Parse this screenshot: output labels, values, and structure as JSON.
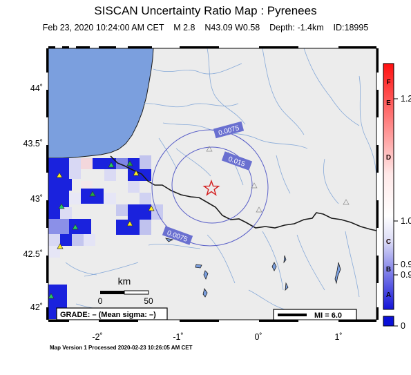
{
  "title": "SISCAN Uncertainty Ratio Map : Pyrenees",
  "subtitle": "Feb 23, 2020 10:24:00 AM CET    M 2.8    N43.09 W0.58    Depth: -1.4km    ID:18995",
  "footer": "Map Version 1 Processed 2020-02-23 10:26:05 AM CET",
  "axes": {
    "lon_labels": [
      "-2˚",
      "-1˚",
      "0˚",
      "1˚"
    ],
    "lat_labels": [
      "44˚",
      "43.5˚",
      "43˚",
      "42.5˚",
      "42˚"
    ]
  },
  "contours": {
    "outer": "0.0075",
    "inner": "0.015",
    "lower": "0.0075"
  },
  "scale": {
    "unit": "km",
    "start": "0",
    "end": "50"
  },
  "grade_box": "GRADE: – (Mean sigma: –)",
  "mi_legend": "MI = 6.0",
  "colorbar": {
    "letters": [
      "F",
      "E",
      "D",
      "C",
      "B",
      "A"
    ],
    "values": [
      "1.2",
      "1.0",
      "0.9",
      "0.9",
      "0"
    ]
  },
  "colors": {
    "sea": "#7b9fde",
    "land": "#ececec",
    "river": "#7fa6d6",
    "border": "#1a1a1a",
    "contour": "#5a60c8",
    "epicenter": "#d42020",
    "cell_strong": "#0a10d8"
  },
  "symbols": {
    "epicenter": "star",
    "stations": "triangle"
  }
}
